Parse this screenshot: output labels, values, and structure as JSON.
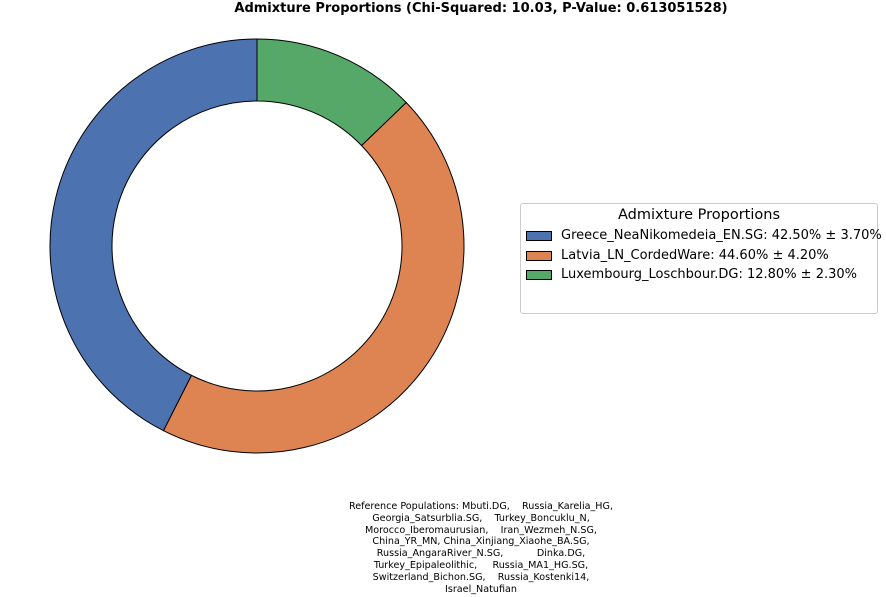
{
  "chart_data": {
    "type": "pie",
    "title": "Admixture Proportions (Chi-Squared: 10.03, P-Value: 0.613051528)",
    "donut": true,
    "start_angle_deg": 90,
    "direction": "counterclockwise",
    "slices": [
      {
        "label": "Greece_NeaNikomedeia_EN.SG",
        "value": 42.5,
        "error": 3.7,
        "color": "#4c72b0"
      },
      {
        "label": "Latvia_LN_CordedWare",
        "value": 44.6,
        "error": 4.2,
        "color": "#dd8452"
      },
      {
        "label": "Luxembourg_Loschbour.DG",
        "value": 12.8,
        "error": 2.3,
        "color": "#55a868"
      }
    ],
    "legend": {
      "title": "Admixture Proportions",
      "position": "right",
      "entries": [
        "Greece_NeaNikomedeia_EN.SG: 42.50% ± 3.70%",
        "Latvia_LN_CordedWare: 44.60% ± 4.20%",
        "Luxembourg_Loschbour.DG: 12.80% ± 2.30%"
      ]
    },
    "footnote": "Reference Populations: Mbuti.DG,    Russia_Karelia_HG,\nGeorgia_Satsurblia.SG,    Turkey_Boncuklu_N,\nMorocco_Iberomaurusian,    Iran_Wezmeh_N.SG,\nChina_YR_MN, China_Xinjiang_Xiaohe_BA.SG,\nRussia_AngaraRiver_N.SG,           Dinka.DG,\nTurkey_Epipaleolithic,     Russia_MA1_HG.SG,\nSwitzerland_Bichon.SG,    Russia_Kostenki14,\nIsrael_Natufian"
  }
}
